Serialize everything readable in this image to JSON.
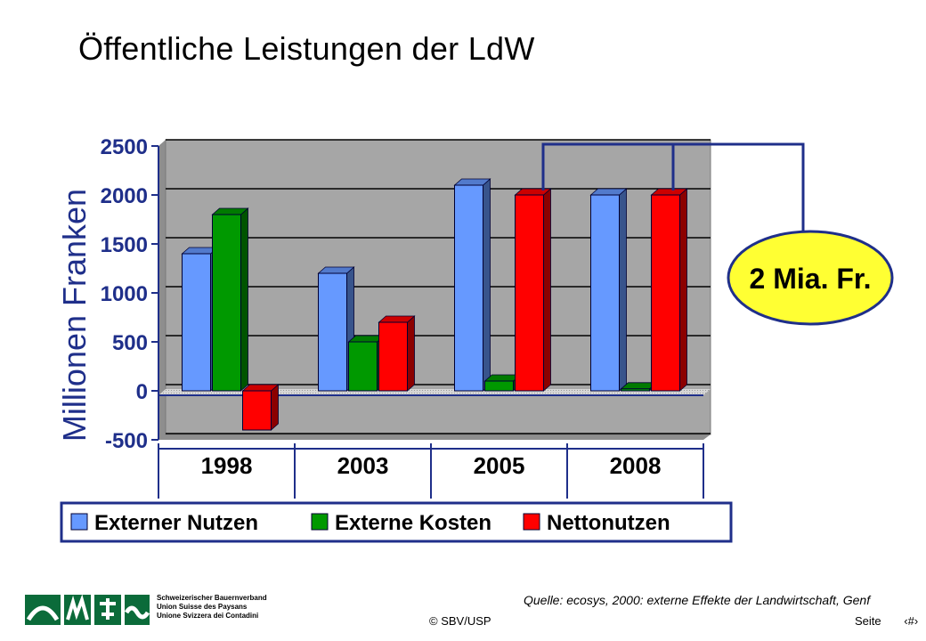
{
  "title": "Öffentliche Leistungen der LdW",
  "chart_data": {
    "type": "bar",
    "ylabel": "Millionen Franken",
    "ylim": [
      -500,
      2500
    ],
    "yticks": [
      2500,
      2000,
      1500,
      1000,
      500,
      0,
      -500
    ],
    "categories": [
      "1998",
      "2003",
      "2005",
      "2008"
    ],
    "series": [
      {
        "name": "Externer Nutzen",
        "color": "#6699ff",
        "values": [
          1400,
          1200,
          2100,
          2000
        ]
      },
      {
        "name": "Externe Kosten",
        "color": "#009900",
        "values": [
          1800,
          500,
          100,
          20
        ]
      },
      {
        "name": "Nettonutzen",
        "color": "#ff0000",
        "values": [
          -400,
          700,
          2000,
          2000
        ]
      }
    ],
    "grid": true,
    "legend_position": "bottom",
    "annotation": {
      "text": "2 Mia. Fr.",
      "fill": "#ffff33"
    }
  },
  "footer": {
    "source": "Quelle: ecosys, 2000: externe Effekte der Landwirtschaft, Genf",
    "copyright": "© SBV/USP",
    "page_label": "Seite",
    "page_number": "‹#›",
    "org_lines": [
      "Schweizerischer Bauernverband",
      "Union Suisse des Paysans",
      "Unione Svizzera dei Contadini"
    ]
  },
  "logo_icon": "sbv-logo-icon"
}
